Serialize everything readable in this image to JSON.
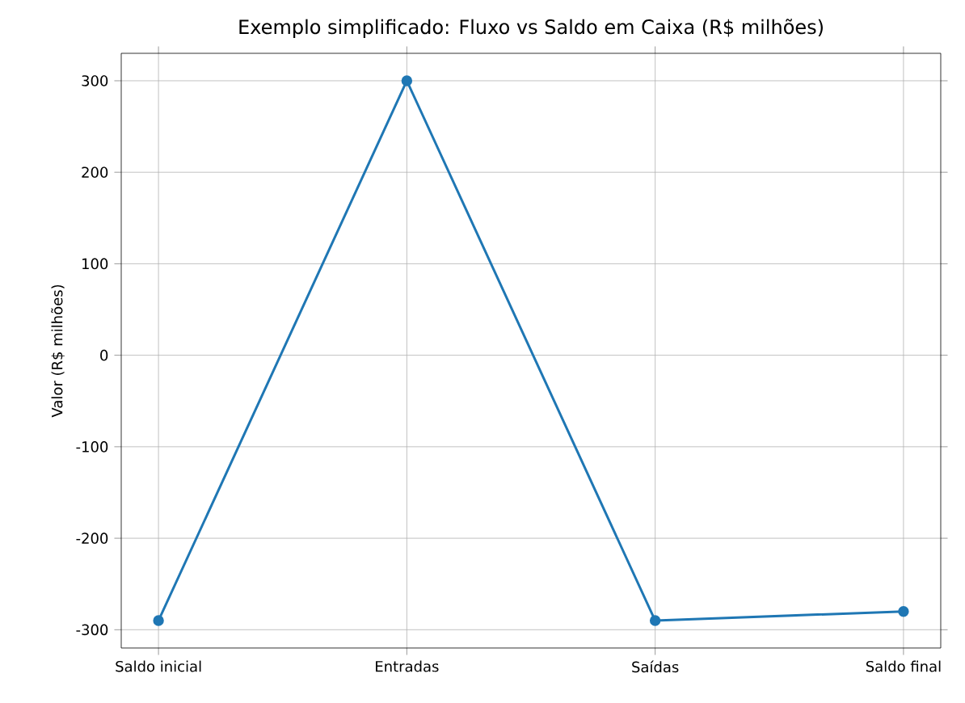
{
  "chart_data": {
    "type": "line",
    "title": "Exemplo simplificado: Fluxo vs Saldo em Caixa (R$ milhões)",
    "ylabel": "Valor (R$ milhões)",
    "categories": [
      "Saldo inicial",
      "Entradas",
      "Saídas",
      "Saldo final"
    ],
    "series": [
      {
        "color": "#1f77b4",
        "values": [
          -290,
          300,
          -290,
          -280
        ]
      }
    ],
    "ylim": [
      -320,
      330
    ],
    "yticks": [
      -300,
      -200,
      -100,
      0,
      100,
      200,
      300
    ],
    "grid": true,
    "marker": "circle",
    "line_style": "solid"
  }
}
